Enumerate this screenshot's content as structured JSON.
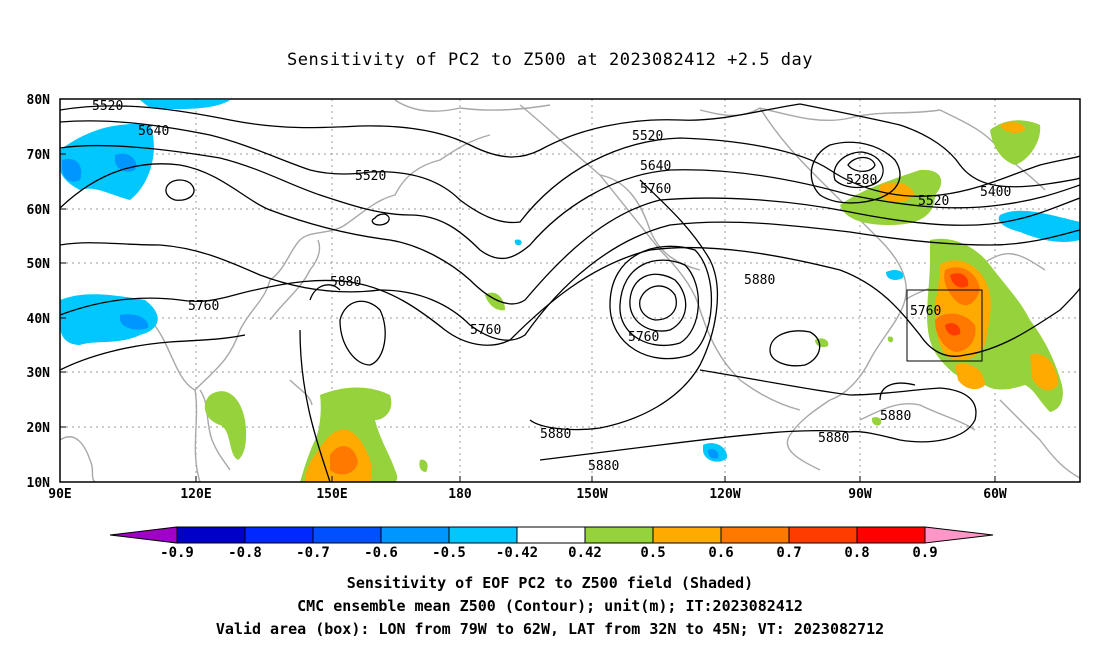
{
  "title": "Sensitivity of PC2 to Z500 at 2023082412 +2.5 day",
  "map": {
    "lat_labels": [
      "80N",
      "70N",
      "60N",
      "50N",
      "40N",
      "30N",
      "20N",
      "10N"
    ],
    "lon_labels": [
      "90E",
      "120E",
      "150E",
      "180",
      "150W",
      "120W",
      "90W",
      "60W"
    ],
    "contour_labels": [
      "5520",
      "5640",
      "5520",
      "5520",
      "5640",
      "5760",
      "5280",
      "5400",
      "5520",
      "5760",
      "5880",
      "5760",
      "5760",
      "5880",
      "5760",
      "5880",
      "5880",
      "5880",
      "5880"
    ],
    "valid_box": "LON 79W to 62W, LAT 32N to 45N"
  },
  "colorbar": {
    "labels": [
      "-0.9",
      "-0.8",
      "-0.7",
      "-0.6",
      "-0.5",
      "-0.42",
      "0.42",
      "0.5",
      "0.6",
      "0.7",
      "0.8",
      "0.9"
    ],
    "colors": [
      "#a000c8",
      "#0000c8",
      "#0028ff",
      "#0050ff",
      "#0096ff",
      "#00c8ff",
      "#ffffff",
      "#96d23c",
      "#ffaa00",
      "#ff7800",
      "#ff3c00",
      "#ff0000",
      "#ff96c8"
    ]
  },
  "captions": {
    "line1": "Sensitivity of EOF PC2 to Z500 field (Shaded)",
    "line2": "CMC ensemble mean Z500 (Contour); unit(m); IT:2023082412",
    "line3": "Valid area (box): LON from 79W to 62W, LAT from 32N to 45N; VT: 2023082712"
  }
}
